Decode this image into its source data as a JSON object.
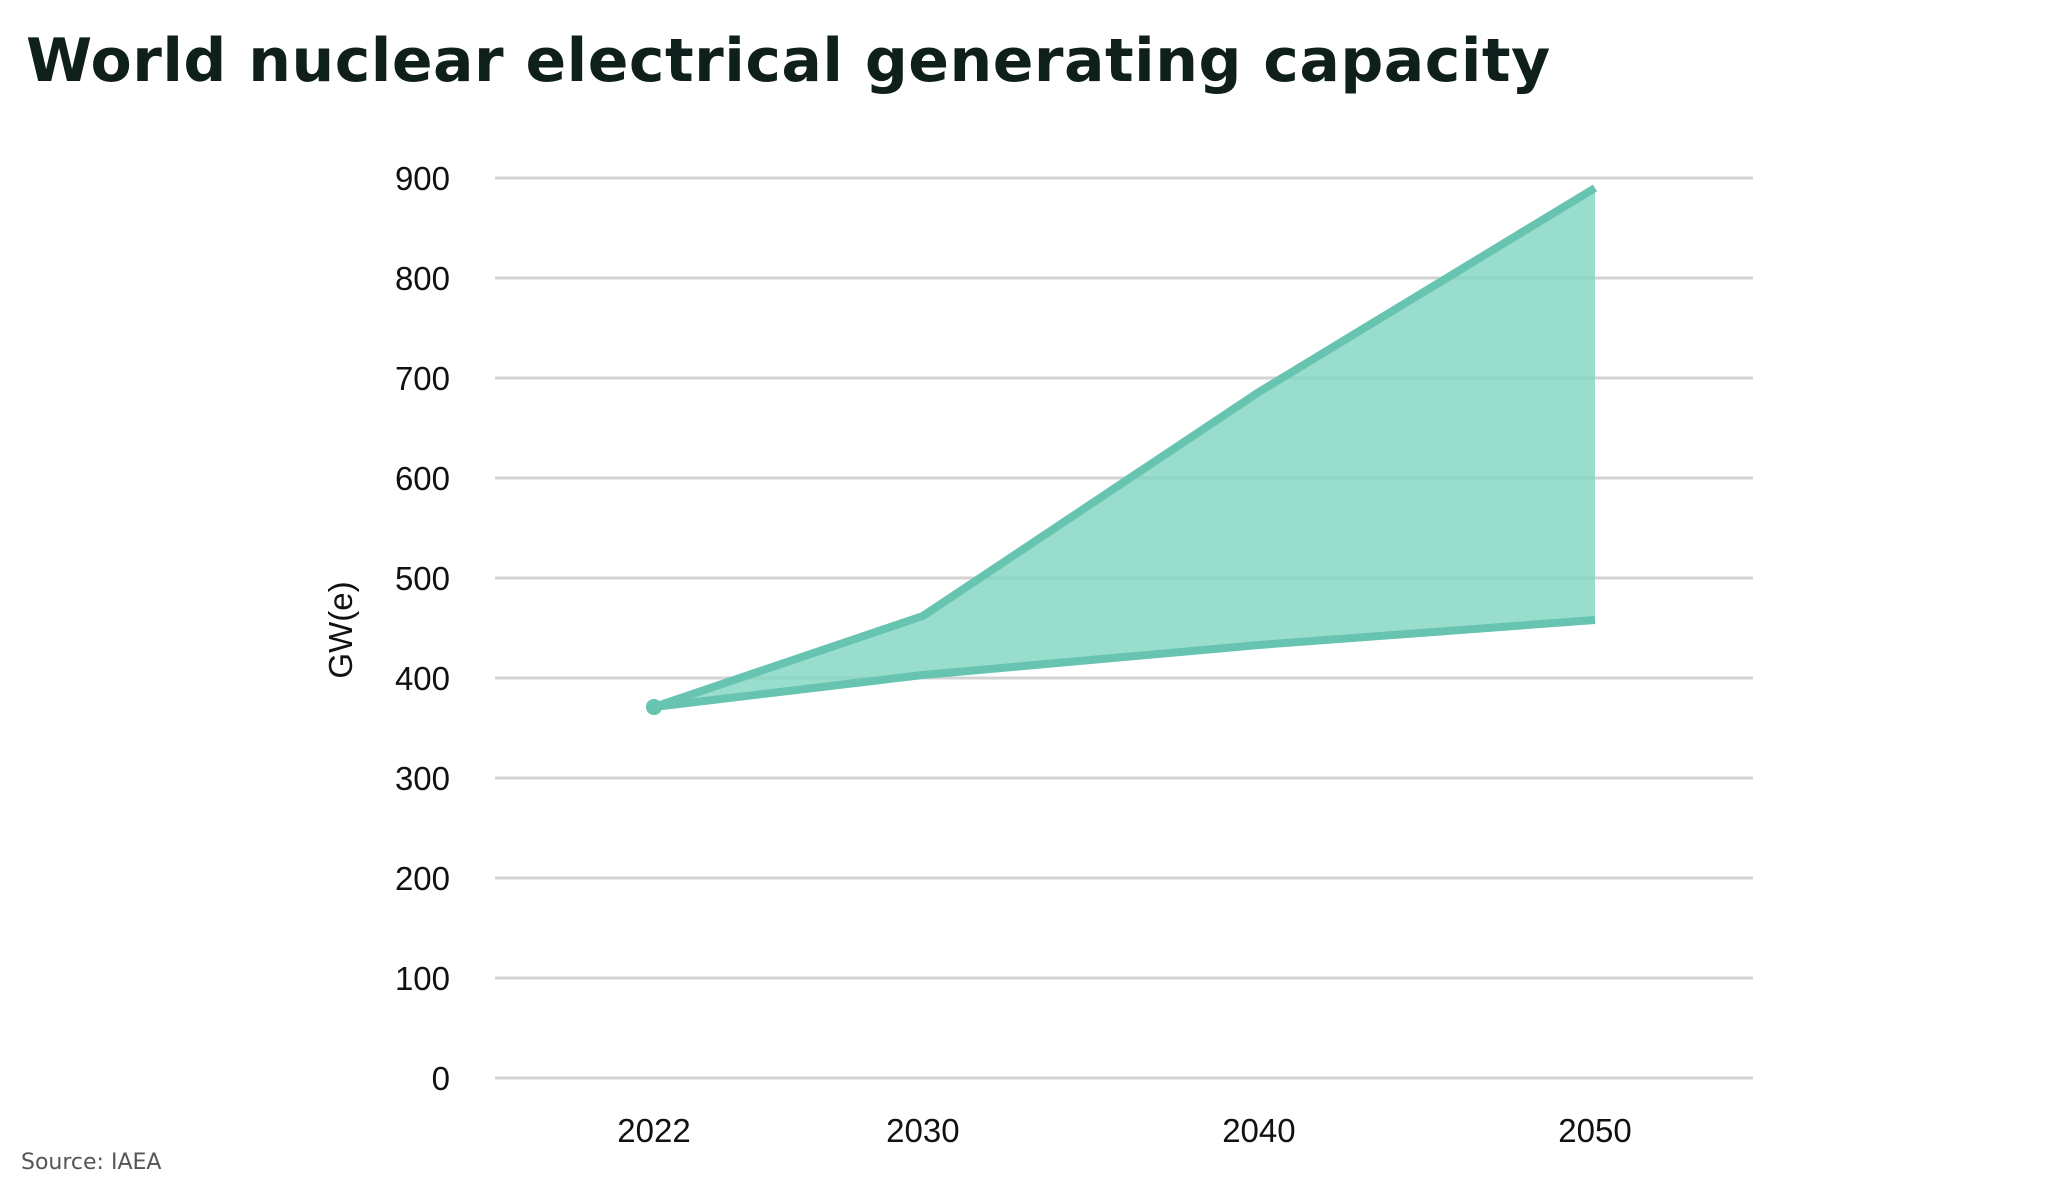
{
  "title": "World nuclear electrical generating capacity",
  "source": "Source: IAEA",
  "chart_data": {
    "type": "area",
    "title": "World nuclear electrical generating capacity",
    "ylabel": "GW(e)",
    "xlabel": "",
    "categories": [
      "2022",
      "2030",
      "2040",
      "2050"
    ],
    "x": [
      2022,
      2030,
      2040,
      2050
    ],
    "series": [
      {
        "values": [
          371,
          462,
          686,
          890
        ]
      },
      {
        "values": [
          371,
          403,
          433,
          458
        ]
      }
    ],
    "ylim": [
      0,
      900
    ],
    "yticks": [
      "0",
      "100",
      "200",
      "300",
      "400",
      "500",
      "600",
      "700",
      "800",
      "900"
    ],
    "grid": true,
    "colors": {
      "line": "#66c4b0",
      "fill": "#7fd5c0",
      "grid": "#d3d3d3",
      "title": "#0f1f1c"
    }
  }
}
